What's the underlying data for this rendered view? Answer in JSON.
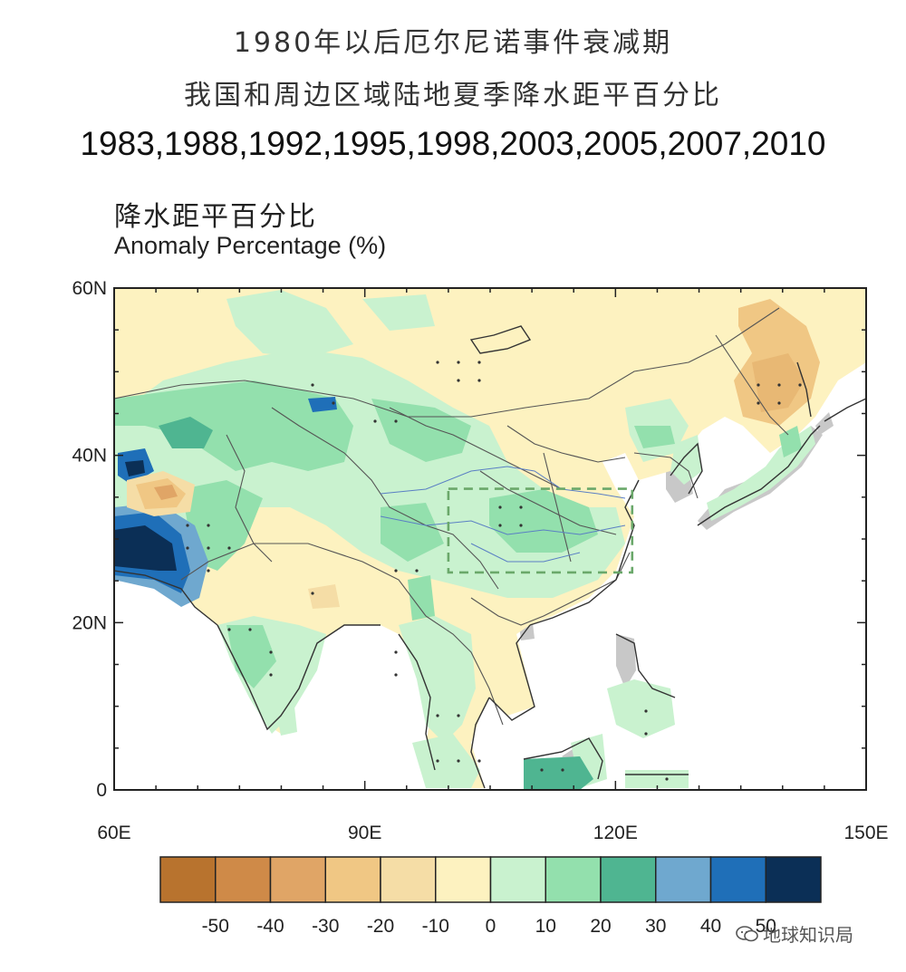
{
  "title": {
    "line1": "1980年以后厄尔尼诺事件衰减期",
    "line2": "我国和周边区域陆地夏季降水距平百分比",
    "years": "1983,1988,1992,1995,1998,2003,2005,2007,2010"
  },
  "variable": {
    "label_cn": "降水距平百分比",
    "label_en": "Anomaly Percentage (%)"
  },
  "map": {
    "lon_range": [
      60,
      150
    ],
    "lat_range": [
      0,
      60
    ],
    "x_ticks": [
      "60E",
      "90E",
      "120E",
      "150E"
    ],
    "y_ticks": [
      "60N",
      "40N",
      "20N",
      "0"
    ],
    "highlight_box": {
      "lon": [
        100,
        122
      ],
      "lat": [
        26,
        36
      ],
      "style": "dashed",
      "color": "#6aa86a"
    },
    "colors": {
      "ocean": "#ffffff",
      "missing": "#c8c8c8",
      "boundary": "#555555"
    }
  },
  "colorbar": {
    "colors": [
      "#b8732e",
      "#cf8a48",
      "#e0a566",
      "#f0c784",
      "#f5dda6",
      "#fdf2c0",
      "#c9f2cf",
      "#93e0ad",
      "#4fb591",
      "#6fa8cf",
      "#1f6fb8",
      "#0b2f56"
    ],
    "tick_labels": [
      "-50",
      "-40",
      "-30",
      "-20",
      "-10",
      "0",
      "10",
      "20",
      "30",
      "40",
      "50"
    ]
  },
  "watermark": {
    "text": "地球知识局",
    "icon": "wechat-icon"
  }
}
